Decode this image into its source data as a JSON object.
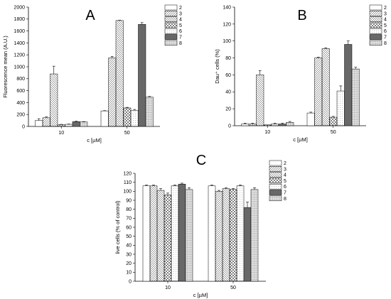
{
  "chart_data": [
    {
      "type": "bar",
      "panel": "A",
      "categories": [
        "10",
        "50"
      ],
      "xlabel": "c [µM]",
      "ylabel": "Fluorescence mean (A.U.)",
      "ylim": [
        0,
        2000
      ],
      "yticks": [
        0,
        200,
        400,
        600,
        800,
        1000,
        1200,
        1400,
        1600,
        1800,
        2000
      ],
      "legend_position": "top-right",
      "series": [
        {
          "name": "2",
          "pattern": "blank",
          "values": [
            100,
            260
          ],
          "errors": [
            30,
            5
          ]
        },
        {
          "name": "3",
          "pattern": "hatch",
          "values": [
            145,
            1150
          ],
          "errors": [
            15,
            25
          ]
        },
        {
          "name": "4",
          "pattern": "hatch",
          "values": [
            880,
            1775
          ],
          "errors": [
            130,
            5
          ]
        },
        {
          "name": "5",
          "pattern": "cross",
          "values": [
            30,
            310
          ],
          "errors": [
            5,
            10
          ]
        },
        {
          "name": "6",
          "pattern": "dots",
          "values": [
            35,
            270
          ],
          "errors": [
            5,
            15
          ]
        },
        {
          "name": "7",
          "pattern": "dense",
          "values": [
            80,
            1710
          ],
          "errors": [
            8,
            30
          ]
        },
        {
          "name": "8",
          "pattern": "finedots",
          "values": [
            75,
            490
          ],
          "errors": [
            5,
            12
          ]
        }
      ]
    },
    {
      "type": "bar",
      "panel": "B",
      "categories": [
        "10",
        "50"
      ],
      "xlabel": "c [µM]",
      "ylabel": "Dau⁺ cells (%)",
      "ylim": [
        0,
        140
      ],
      "yticks": [
        0,
        20,
        40,
        60,
        80,
        100,
        120,
        140
      ],
      "legend_position": "top-right",
      "series": [
        {
          "name": "2",
          "pattern": "blank",
          "values": [
            2,
            15
          ],
          "errors": [
            1,
            1
          ]
        },
        {
          "name": "3",
          "pattern": "hatch",
          "values": [
            2,
            80
          ],
          "errors": [
            1,
            1
          ]
        },
        {
          "name": "4",
          "pattern": "hatch",
          "values": [
            60,
            91
          ],
          "errors": [
            5,
            1
          ]
        },
        {
          "name": "5",
          "pattern": "cross",
          "values": [
            1,
            10
          ],
          "errors": [
            0,
            1
          ]
        },
        {
          "name": "6",
          "pattern": "dots",
          "values": [
            2,
            41
          ],
          "errors": [
            1,
            6
          ]
        },
        {
          "name": "7",
          "pattern": "dense",
          "values": [
            2,
            96
          ],
          "errors": [
            1,
            4
          ]
        },
        {
          "name": "8",
          "pattern": "finedots",
          "values": [
            4,
            67
          ],
          "errors": [
            1,
            2
          ]
        }
      ]
    },
    {
      "type": "bar",
      "panel": "C",
      "categories": [
        "10",
        "50"
      ],
      "xlabel": "c [µM]",
      "ylabel": "live cells (% of control)",
      "ylim": [
        0,
        120
      ],
      "yticks": [
        0,
        10,
        20,
        30,
        40,
        50,
        60,
        70,
        80,
        90,
        100,
        110,
        120
      ],
      "legend_position": "top-right",
      "series": [
        {
          "name": "2",
          "pattern": "blank",
          "values": [
            106,
            106
          ],
          "errors": [
            1,
            1
          ]
        },
        {
          "name": "3",
          "pattern": "hatch",
          "values": [
            106,
            100
          ],
          "errors": [
            1,
            1
          ]
        },
        {
          "name": "4",
          "pattern": "hatch",
          "values": [
            101,
            103
          ],
          "errors": [
            2,
            1
          ]
        },
        {
          "name": "5",
          "pattern": "cross",
          "values": [
            96,
            102
          ],
          "errors": [
            2,
            1
          ]
        },
        {
          "name": "6",
          "pattern": "dots",
          "values": [
            106,
            106
          ],
          "errors": [
            1,
            1
          ]
        },
        {
          "name": "7",
          "pattern": "dense",
          "values": [
            108,
            82
          ],
          "errors": [
            1,
            6
          ]
        },
        {
          "name": "8",
          "pattern": "finedots",
          "values": [
            102,
            102
          ],
          "errors": [
            2,
            2
          ]
        }
      ]
    }
  ]
}
